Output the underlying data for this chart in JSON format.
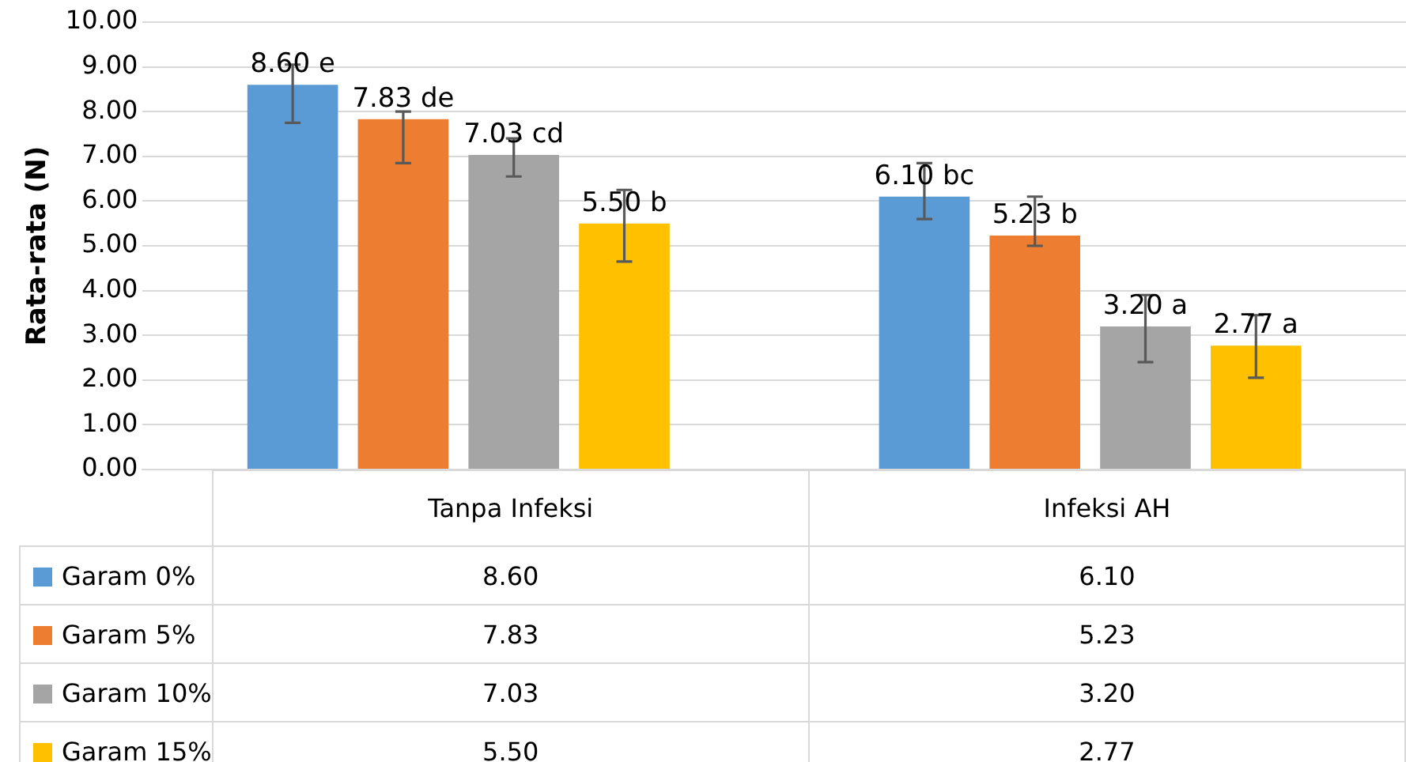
{
  "chart_data": {
    "type": "bar",
    "ylabel": "Rata-rata (N)",
    "categories": [
      "Tanpa Infeksi",
      "Infeksi AH"
    ],
    "series": [
      {
        "name": "Garam 0%",
        "color": "#5b9bd5",
        "values": [
          8.6,
          6.1
        ],
        "value_labels": [
          "8.60",
          "6.10"
        ],
        "errors": [
          [
            7.75,
            9.05
          ],
          [
            5.6,
            6.85
          ]
        ]
      },
      {
        "name": "Garam 5%",
        "color": "#ed7d31",
        "values": [
          7.83,
          5.23
        ],
        "value_labels": [
          "7.83",
          "5.23"
        ],
        "errors": [
          [
            6.85,
            8.0
          ],
          [
            5.0,
            6.1
          ]
        ]
      },
      {
        "name": "Garam 10%",
        "color": "#a5a5a5",
        "values": [
          7.03,
          3.2
        ],
        "value_labels": [
          "7.03",
          "3.20"
        ],
        "errors": [
          [
            6.55,
            7.4
          ],
          [
            2.4,
            3.9
          ]
        ]
      },
      {
        "name": "Garam 15%",
        "color": "#ffc000",
        "values": [
          5.5,
          2.77
        ],
        "value_labels": [
          "5.50",
          "2.77"
        ],
        "errors": [
          [
            4.65,
            6.25
          ],
          [
            2.05,
            3.45
          ]
        ]
      }
    ],
    "annotations": [
      "8.60 e",
      "7.83 de",
      "7.03 cd",
      "5.50 b",
      "6.10 bc",
      "5.23 b",
      "3.20 a",
      "2.77 a"
    ],
    "ylim": [
      0,
      10
    ],
    "yticks": [
      {
        "value": 0,
        "label": "0.00"
      },
      {
        "value": 1,
        "label": "1.00"
      },
      {
        "value": 2,
        "label": "2.00"
      },
      {
        "value": 3,
        "label": "3.00"
      },
      {
        "value": 4,
        "label": "4.00"
      },
      {
        "value": 5,
        "label": "5.00"
      },
      {
        "value": 6,
        "label": "6.00"
      },
      {
        "value": 7,
        "label": "7.00"
      },
      {
        "value": 8,
        "label": "8.00"
      },
      {
        "value": 9,
        "label": "9.00"
      },
      {
        "value": 10,
        "label": "10.00"
      }
    ],
    "grid": "y",
    "legend": "bottom",
    "data_labels": true
  }
}
